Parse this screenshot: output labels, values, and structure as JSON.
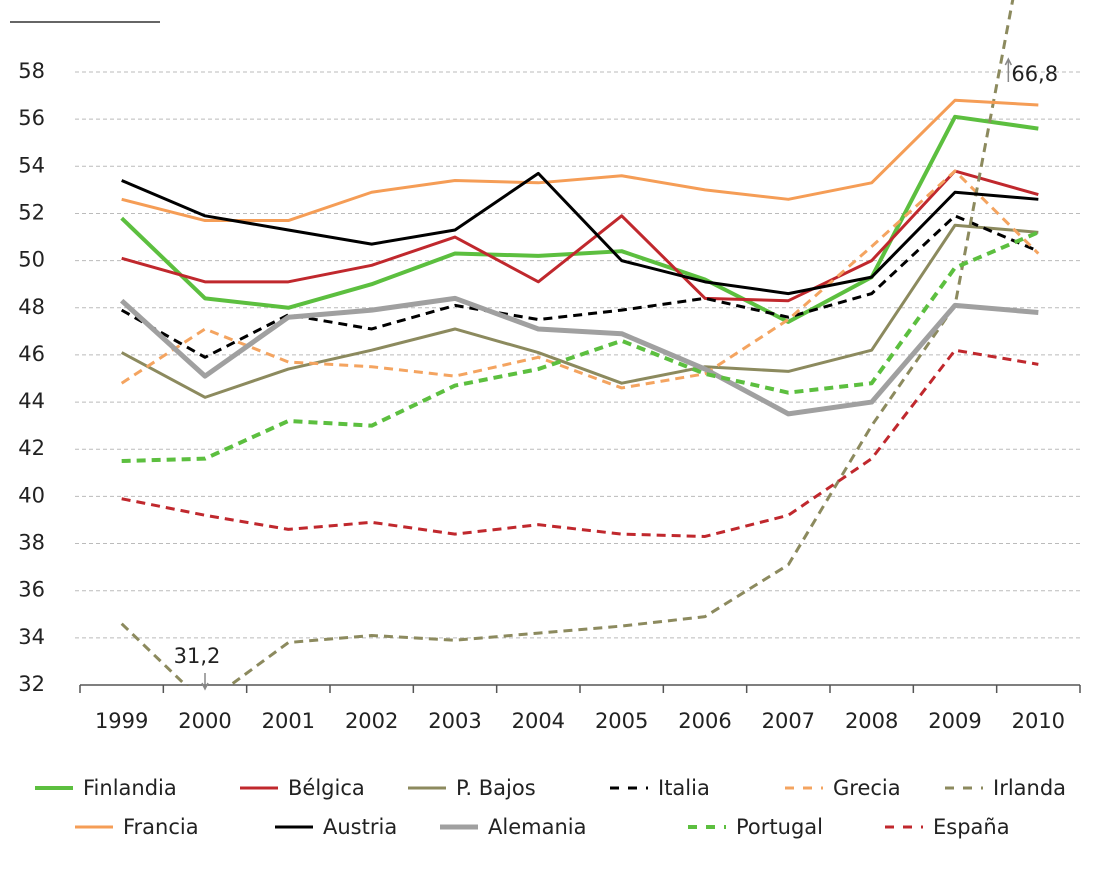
{
  "chart_data": {
    "type": "line",
    "categories": [
      "1999",
      "2000",
      "2001",
      "2002",
      "2003",
      "2004",
      "2005",
      "2006",
      "2007",
      "2008",
      "2009",
      "2010"
    ],
    "ylim": [
      32,
      58
    ],
    "yticks": [
      32,
      34,
      36,
      38,
      40,
      42,
      44,
      46,
      48,
      50,
      52,
      54,
      56,
      58
    ],
    "grid": true,
    "series": [
      {
        "name": "Finlandia",
        "color": "#5cbf3f",
        "dash": false,
        "width": 4,
        "values": [
          51.8,
          48.4,
          48.0,
          49.0,
          50.3,
          50.2,
          50.4,
          49.2,
          47.4,
          49.3,
          56.1,
          55.6
        ]
      },
      {
        "name": "Bélgica",
        "color": "#c0282d",
        "dash": false,
        "width": 3,
        "values": [
          50.1,
          49.1,
          49.1,
          49.8,
          51.0,
          49.1,
          51.9,
          48.4,
          48.3,
          50.0,
          53.8,
          52.8
        ]
      },
      {
        "name": "P. Bajos",
        "color": "#8c8a5e",
        "dash": false,
        "width": 3,
        "values": [
          46.1,
          44.2,
          45.4,
          46.2,
          47.1,
          46.1,
          44.8,
          45.5,
          45.3,
          46.2,
          51.5,
          51.2
        ]
      },
      {
        "name": "Italia",
        "color": "#000000",
        "dash": true,
        "width": 3,
        "values": [
          47.9,
          45.9,
          47.7,
          47.1,
          48.1,
          47.5,
          47.9,
          48.4,
          47.6,
          48.6,
          51.9,
          50.4
        ]
      },
      {
        "name": "Grecia",
        "color": "#f4a460",
        "dash": true,
        "width": 3,
        "values": [
          44.8,
          47.1,
          45.7,
          45.5,
          45.1,
          45.9,
          44.6,
          45.2,
          47.5,
          50.6,
          53.8,
          50.3
        ]
      },
      {
        "name": "Irlanda",
        "color": "#8c8a5e",
        "dash": true,
        "width": 3,
        "values": [
          34.6,
          31.2,
          33.8,
          34.1,
          33.9,
          34.2,
          34.5,
          34.9,
          37.1,
          43.0,
          48.1,
          66.8
        ],
        "value_labels": [
          null,
          "31,2",
          null,
          null,
          null,
          null,
          null,
          null,
          null,
          null,
          null,
          "66,8"
        ]
      },
      {
        "name": "Francia",
        "color": "#f59d56",
        "dash": false,
        "width": 3,
        "values": [
          52.6,
          51.7,
          51.7,
          52.9,
          53.4,
          53.3,
          53.6,
          53.0,
          52.6,
          53.3,
          56.8,
          56.6
        ]
      },
      {
        "name": "Austria",
        "color": "#000000",
        "dash": false,
        "width": 3,
        "values": [
          53.4,
          51.9,
          51.3,
          50.7,
          51.3,
          53.7,
          50.0,
          49.1,
          48.6,
          49.3,
          52.9,
          52.6
        ]
      },
      {
        "name": "Alemania",
        "color": "#a0a0a0",
        "dash": false,
        "width": 5,
        "values": [
          48.3,
          45.1,
          47.6,
          47.9,
          48.4,
          47.1,
          46.9,
          45.4,
          43.5,
          44.0,
          48.1,
          47.8
        ]
      },
      {
        "name": "Portugal",
        "color": "#5cbf3f",
        "dash": true,
        "width": 4,
        "values": [
          41.5,
          41.6,
          43.2,
          43.0,
          44.7,
          45.4,
          46.6,
          45.2,
          44.4,
          44.8,
          49.7,
          51.2
        ]
      },
      {
        "name": "España",
        "color": "#c0282d",
        "dash": true,
        "width": 3,
        "values": [
          39.9,
          39.2,
          38.6,
          38.9,
          38.4,
          38.8,
          38.4,
          38.3,
          39.2,
          41.6,
          46.2,
          45.6
        ]
      }
    ]
  }
}
